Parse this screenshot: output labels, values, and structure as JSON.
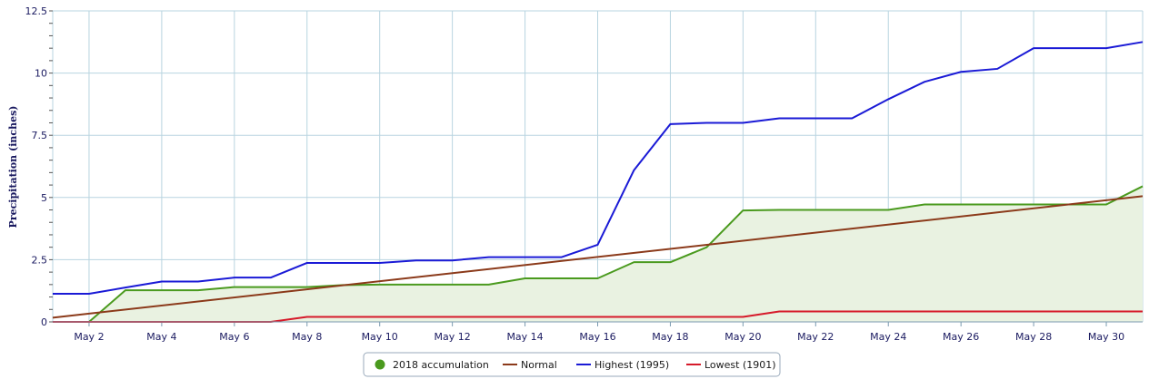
{
  "chart_data": {
    "type": "line",
    "ylabel": "Precipitation (inches)",
    "xlabel": "",
    "ylim": [
      0,
      12.5
    ],
    "xlim": [
      1,
      31
    ],
    "y_ticks": [
      0,
      2.5,
      5,
      7.5,
      10,
      12.5
    ],
    "y_tick_labels": [
      "0",
      "2.5",
      "5",
      "7.5",
      "10",
      "12.5"
    ],
    "x_ticks": [
      2,
      4,
      6,
      8,
      10,
      12,
      14,
      16,
      18,
      20,
      22,
      24,
      26,
      28,
      30
    ],
    "x_tick_labels": [
      "May 2",
      "May 4",
      "May 6",
      "May 8",
      "May 10",
      "May 12",
      "May 14",
      "May 16",
      "May 18",
      "May 20",
      "May 22",
      "May 24",
      "May 26",
      "May 28",
      "May 30"
    ],
    "grid": true,
    "legend_position": "bottom-center",
    "series": [
      {
        "name": "2018 accumulation",
        "color": "#4a9a1e",
        "fill": "#e9f2e1",
        "points": [
          [
            2,
            0
          ],
          [
            3,
            1.27
          ],
          [
            4,
            1.27
          ],
          [
            5,
            1.27
          ],
          [
            6,
            1.4
          ],
          [
            7,
            1.4
          ],
          [
            8,
            1.4
          ],
          [
            9,
            1.48
          ],
          [
            10,
            1.5
          ],
          [
            11,
            1.5
          ],
          [
            12,
            1.5
          ],
          [
            13,
            1.5
          ],
          [
            14,
            1.75
          ],
          [
            15,
            1.75
          ],
          [
            16,
            1.75
          ],
          [
            17,
            2.4
          ],
          [
            18,
            2.4
          ],
          [
            19,
            3.0
          ],
          [
            20,
            4.48
          ],
          [
            21,
            4.5
          ],
          [
            22,
            4.5
          ],
          [
            23,
            4.5
          ],
          [
            24,
            4.5
          ],
          [
            25,
            4.72
          ],
          [
            26,
            4.72
          ],
          [
            27,
            4.72
          ],
          [
            28,
            4.72
          ],
          [
            29,
            4.72
          ],
          [
            30,
            4.72
          ],
          [
            31,
            5.45
          ]
        ]
      },
      {
        "name": "Normal",
        "color": "#8b3a1a",
        "points": [
          [
            1,
            0.17
          ],
          [
            31,
            5.05
          ]
        ]
      },
      {
        "name": "Highest (1995)",
        "color": "#1a1ad6",
        "points": [
          [
            1,
            1.13
          ],
          [
            2,
            1.13
          ],
          [
            3,
            1.38
          ],
          [
            4,
            1.62
          ],
          [
            5,
            1.62
          ],
          [
            6,
            1.78
          ],
          [
            7,
            1.78
          ],
          [
            8,
            2.37
          ],
          [
            9,
            2.37
          ],
          [
            10,
            2.37
          ],
          [
            11,
            2.47
          ],
          [
            12,
            2.47
          ],
          [
            13,
            2.6
          ],
          [
            14,
            2.6
          ],
          [
            15,
            2.6
          ],
          [
            16,
            3.1
          ],
          [
            17,
            6.1
          ],
          [
            18,
            7.95
          ],
          [
            19,
            8.0
          ],
          [
            20,
            8.0
          ],
          [
            21,
            8.18
          ],
          [
            22,
            8.18
          ],
          [
            23,
            8.18
          ],
          [
            24,
            8.95
          ],
          [
            25,
            9.65
          ],
          [
            26,
            10.05
          ],
          [
            27,
            10.17
          ],
          [
            28,
            11.0
          ],
          [
            29,
            11.0
          ],
          [
            30,
            11.0
          ],
          [
            31,
            11.25
          ]
        ]
      },
      {
        "name": "Lowest (1901)",
        "color": "#d61a2a",
        "points": [
          [
            1,
            0
          ],
          [
            2,
            0
          ],
          [
            3,
            0
          ],
          [
            4,
            0
          ],
          [
            5,
            0
          ],
          [
            6,
            0
          ],
          [
            7,
            0
          ],
          [
            8,
            0.2
          ],
          [
            9,
            0.2
          ],
          [
            10,
            0.2
          ],
          [
            11,
            0.2
          ],
          [
            12,
            0.2
          ],
          [
            13,
            0.2
          ],
          [
            14,
            0.2
          ],
          [
            15,
            0.2
          ],
          [
            16,
            0.2
          ],
          [
            17,
            0.2
          ],
          [
            18,
            0.2
          ],
          [
            19,
            0.2
          ],
          [
            20,
            0.2
          ],
          [
            21,
            0.42
          ],
          [
            22,
            0.42
          ],
          [
            23,
            0.42
          ],
          [
            24,
            0.42
          ],
          [
            25,
            0.42
          ],
          [
            26,
            0.42
          ],
          [
            27,
            0.42
          ],
          [
            28,
            0.42
          ],
          [
            29,
            0.42
          ],
          [
            30,
            0.42
          ],
          [
            31,
            0.42
          ]
        ]
      }
    ]
  }
}
